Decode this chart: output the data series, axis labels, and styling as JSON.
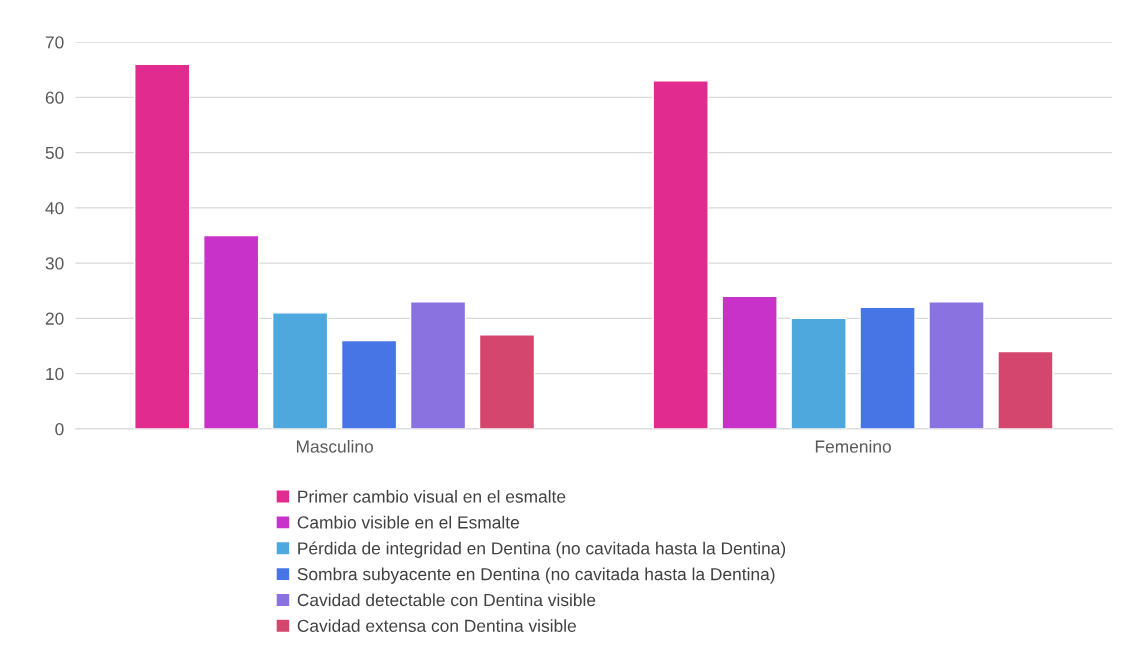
{
  "chart_data": {
    "type": "bar",
    "categories": [
      "Masculino",
      "Femenino"
    ],
    "series": [
      {
        "name": "Primer cambio visual en el esmalte",
        "color": "#e22b8e",
        "values": [
          66,
          63
        ]
      },
      {
        "name": "Cambio visible en el Esmalte",
        "color": "#c832c8",
        "values": [
          35,
          24
        ]
      },
      {
        "name": "Pérdida de integridad en Dentina (no cavitada hasta la Dentina)",
        "color": "#4fa8dd",
        "values": [
          21,
          20
        ]
      },
      {
        "name": "Sombra subyacente en Dentina (no cavitada hasta la Dentina)",
        "color": "#4775e6",
        "values": [
          16,
          22
        ]
      },
      {
        "name": "Cavidad detectable con Dentina visible",
        "color": "#8a72e0",
        "values": [
          23,
          23
        ]
      },
      {
        "name": "Cavidad extensa con Dentina visible",
        "color": "#d4466e",
        "values": [
          17,
          14
        ]
      }
    ],
    "ylim": [
      0,
      70
    ],
    "yticks": [
      0,
      10,
      20,
      30,
      40,
      50,
      60,
      70
    ],
    "grid": "y",
    "legend": "bottom"
  }
}
